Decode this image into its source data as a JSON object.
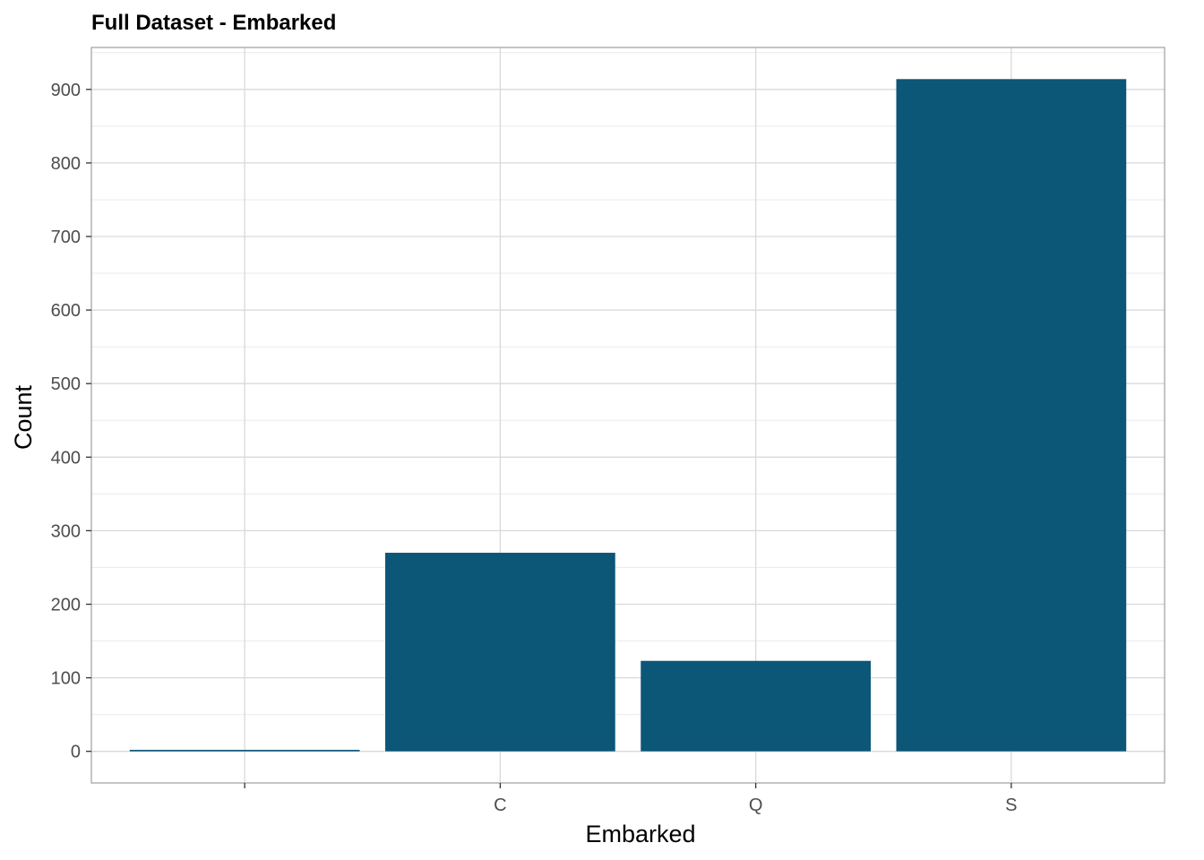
{
  "chart_data": {
    "type": "bar",
    "title": "Full Dataset - Embarked",
    "xlabel": "Embarked",
    "ylabel": "Count",
    "categories": [
      "",
      "C",
      "Q",
      "S"
    ],
    "values": [
      2,
      270,
      123,
      914
    ],
    "ylim": [
      -43,
      957
    ],
    "yticks": [
      0,
      100,
      200,
      300,
      400,
      500,
      600,
      700,
      800,
      900
    ],
    "grid": true,
    "legend": "none",
    "bar_color": "#0C5677",
    "panel_border_color": "#A6A6A6",
    "grid_major_color": "#D9D9D9",
    "grid_minor_color": "#EBEBEB"
  }
}
